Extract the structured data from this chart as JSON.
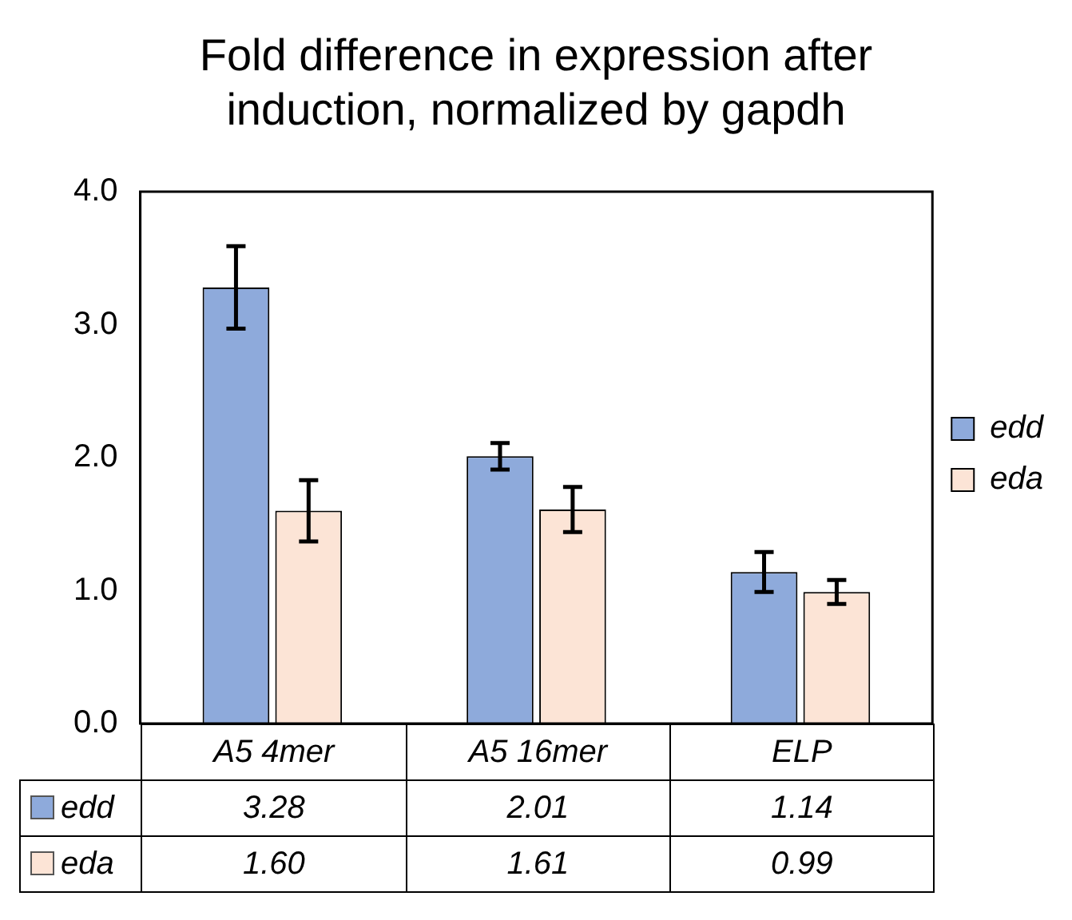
{
  "chart_data": {
    "type": "bar",
    "title": "Fold difference in expression after induction, normalized by gapdh",
    "categories": [
      "A5 4mer",
      "A5 16mer",
      "ELP"
    ],
    "series": [
      {
        "name": "edd",
        "color": "#8eaadb",
        "values": [
          3.28,
          2.01,
          1.14
        ],
        "errors": [
          0.31,
          0.1,
          0.15
        ],
        "value_labels": [
          "3.28",
          "2.01",
          "1.14"
        ]
      },
      {
        "name": "eda",
        "color": "#fce4d6",
        "values": [
          1.6,
          1.61,
          0.99
        ],
        "errors": [
          0.23,
          0.17,
          0.09
        ],
        "value_labels": [
          "1.60",
          "1.61",
          "0.99"
        ]
      }
    ],
    "ylim": [
      0,
      4
    ],
    "yticks": [
      {
        "value": 0,
        "label": "0.0"
      },
      {
        "value": 1,
        "label": "1.0"
      },
      {
        "value": 2,
        "label": "2.0"
      },
      {
        "value": 3,
        "label": "3.0"
      },
      {
        "value": 4,
        "label": "4.0"
      }
    ],
    "grid": false,
    "legend": "right"
  }
}
